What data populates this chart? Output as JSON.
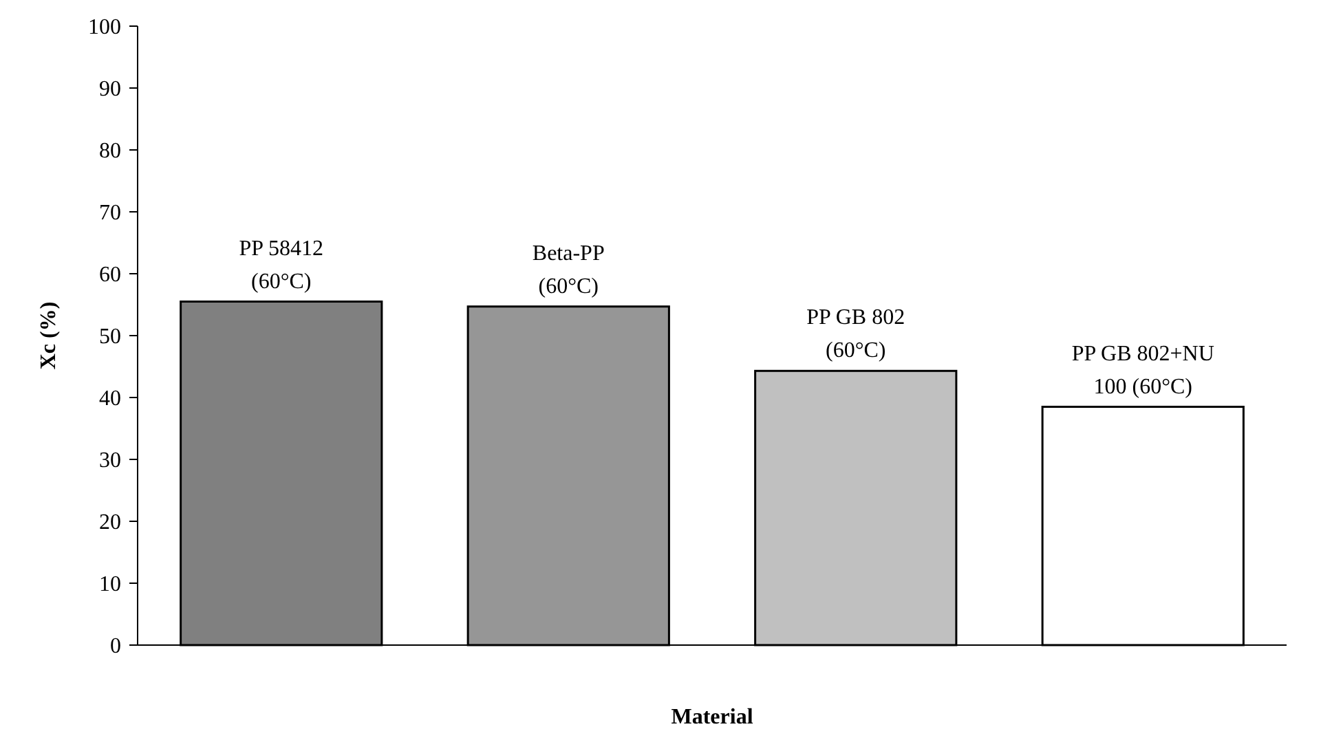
{
  "chart_data": {
    "type": "bar",
    "xlabel": "Material",
    "ylabel": "Xc (%)",
    "categories": [
      "PP 58412\n(60°C)",
      "Beta-PP\n(60°C)",
      "PP GB 802\n(60°C)",
      "PP GB 802+NU\n100 (60°C)"
    ],
    "values": [
      55.5,
      54.7,
      44.3,
      38.5
    ],
    "colors": [
      "#808080",
      "#969696",
      "#c0c0c0",
      "#ffffff"
    ],
    "ylim": [
      0,
      100
    ],
    "yticks": [
      0,
      10,
      20,
      30,
      40,
      50,
      60,
      70,
      80,
      90,
      100
    ],
    "grid": false
  }
}
